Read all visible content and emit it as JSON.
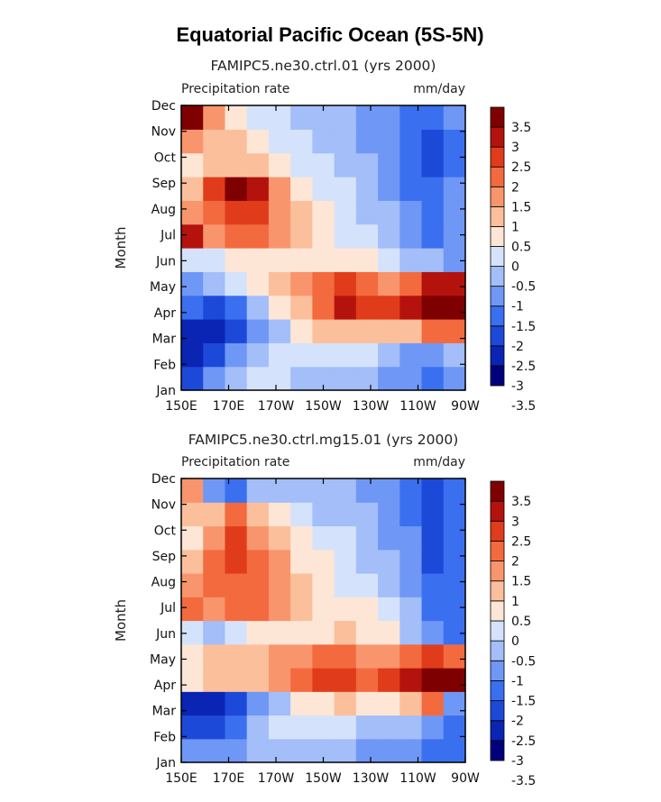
{
  "figure": {
    "title": "Equatorial Pacific Ocean (5S-5N)"
  },
  "colors": {
    "levels": [
      "#00007f",
      "#0a24b4",
      "#1d49d9",
      "#3a6ff0",
      "#6f97f5",
      "#a3bef8",
      "#d4e3fb",
      "#fde6d6",
      "#fcbf9c",
      "#f9956c",
      "#f36a3f",
      "#e03c1b",
      "#b4130d",
      "#7f0000"
    ],
    "frame": "#000000"
  },
  "chart_data": [
    {
      "type": "heatmap",
      "title": "FAMIPC5.ne30.ctrl.01 (yrs 2000)",
      "left_label": "Precipitation rate",
      "right_label": "mm/day",
      "ylabel": "Month",
      "xlabel": "",
      "x": [
        "150E",
        "170E",
        "170W",
        "150W",
        "130W",
        "110W",
        "90W"
      ],
      "y": [
        "Jan",
        "Feb",
        "Mar",
        "Apr",
        "May",
        "Jun",
        "Jul",
        "Aug",
        "Sep",
        "Oct",
        "Nov",
        "Dec"
      ],
      "colorbar": {
        "labels": [
          "3.5",
          "3",
          "2.5",
          "2",
          "1.5",
          "1",
          "0.5",
          "0",
          "-0.5",
          "-1",
          "-1.5",
          "-2",
          "-2.5",
          "-3",
          "-3.5"
        ],
        "range": [
          -4,
          4
        ]
      },
      "values": [
        [
          -2.2,
          -1.5,
          -0.8,
          -0.4,
          -0.5,
          -0.6,
          -0.8,
          -0.9,
          -1.0,
          -1.2,
          -1.5,
          -1.6,
          -1.4
        ],
        [
          -2.6,
          -2.3,
          -1.5,
          -0.8,
          -0.4,
          -0.2,
          -0.1,
          -0.3,
          -0.5,
          -0.8,
          -1.1,
          -1.3,
          -1.0
        ],
        [
          -2.8,
          -2.7,
          -2.2,
          -1.4,
          -0.6,
          0.2,
          0.6,
          0.8,
          0.6,
          0.5,
          0.9,
          1.5,
          1.8
        ],
        [
          -2.0,
          -2.2,
          -1.8,
          -0.8,
          0.0,
          0.9,
          1.6,
          2.5,
          2.0,
          2.2,
          2.8,
          3.6,
          4.0
        ],
        [
          -1.2,
          -0.8,
          -0.3,
          0.2,
          0.6,
          1.2,
          1.8,
          2.0,
          1.8,
          1.4,
          1.8,
          2.5,
          2.8
        ],
        [
          -0.4,
          -0.2,
          0.0,
          0.2,
          0.4,
          0.3,
          0.2,
          0.1,
          0.0,
          -0.3,
          -0.6,
          -1.0,
          -1.2
        ],
        [
          2.8,
          1.2,
          1.6,
          1.8,
          1.2,
          0.6,
          0.2,
          -0.1,
          -0.3,
          -0.6,
          -1.1,
          -1.6,
          -1.4
        ],
        [
          1.2,
          1.6,
          2.4,
          2.0,
          1.4,
          0.5,
          0.0,
          -0.3,
          -0.6,
          -1.0,
          -1.5,
          -1.9,
          -1.5
        ],
        [
          0.8,
          2.0,
          3.4,
          2.8,
          1.2,
          0.4,
          -0.1,
          -0.4,
          -0.7,
          -1.1,
          -1.6,
          -2.0,
          -1.5
        ],
        [
          0.4,
          0.6,
          0.8,
          0.6,
          0.2,
          -0.2,
          -0.4,
          -0.7,
          -1.0,
          -1.3,
          -1.8,
          -2.2,
          -1.6
        ],
        [
          1.4,
          0.8,
          0.6,
          0.2,
          -0.2,
          -0.5,
          -0.7,
          -0.9,
          -1.1,
          -1.4,
          -1.9,
          -2.2,
          -1.6
        ],
        [
          3.0,
          1.4,
          0.4,
          -0.2,
          -0.5,
          -0.7,
          -0.8,
          -1.0,
          -1.2,
          -1.4,
          -1.8,
          -2.0,
          -1.5
        ]
      ]
    },
    {
      "type": "heatmap",
      "title": "FAMIPC5.ne30.ctrl.mg15.01 (yrs 2000)",
      "left_label": "Precipitation rate",
      "right_label": "mm/day",
      "ylabel": "Month",
      "xlabel": "",
      "x": [
        "150E",
        "170E",
        "170W",
        "150W",
        "130W",
        "110W",
        "90W"
      ],
      "y": [
        "Jan",
        "Feb",
        "Mar",
        "Apr",
        "May",
        "Jun",
        "Jul",
        "Aug",
        "Sep",
        "Oct",
        "Nov",
        "Dec"
      ],
      "colorbar": {
        "labels": [
          "3.5",
          "3",
          "2.5",
          "2",
          "1.5",
          "1",
          "0.5",
          "0",
          "-0.5",
          "-1",
          "-1.5",
          "-2",
          "-2.5",
          "-3",
          "-3.5"
        ],
        "range": [
          -4,
          4
        ]
      },
      "values": [
        [
          -1.2,
          -1.4,
          -1.2,
          -0.9,
          -0.8,
          -0.8,
          -0.9,
          -1.0,
          -1.1,
          -1.3,
          -1.5,
          -1.6,
          -1.8
        ],
        [
          -2.4,
          -2.2,
          -1.8,
          -1.0,
          -0.4,
          -0.3,
          -0.3,
          -0.4,
          -0.6,
          -0.8,
          -1.0,
          -1.2,
          -2.0
        ],
        [
          -3.0,
          -2.6,
          -2.3,
          -1.5,
          -0.6,
          0.0,
          0.3,
          0.5,
          0.3,
          0.4,
          0.8,
          1.5,
          -1.2
        ],
        [
          0.2,
          0.8,
          0.6,
          0.8,
          1.0,
          1.6,
          2.0,
          2.2,
          1.9,
          2.0,
          2.6,
          3.6,
          3.4
        ],
        [
          0.4,
          0.8,
          0.6,
          0.6,
          1.0,
          1.4,
          1.6,
          1.6,
          1.4,
          1.2,
          1.5,
          2.2,
          1.6
        ],
        [
          -0.4,
          -0.6,
          -0.2,
          0.0,
          0.2,
          0.3,
          0.4,
          0.5,
          0.3,
          0.0,
          -0.6,
          -1.2,
          -1.6
        ],
        [
          1.6,
          1.4,
          1.6,
          1.8,
          1.0,
          0.5,
          0.2,
          0.2,
          0.1,
          -0.4,
          -1.0,
          -1.8,
          -1.6
        ],
        [
          1.0,
          1.8,
          1.9,
          1.6,
          1.2,
          0.5,
          0.1,
          -0.1,
          -0.4,
          -0.8,
          -1.3,
          -2.0,
          -1.6
        ],
        [
          0.6,
          1.8,
          2.0,
          1.5,
          1.0,
          0.3,
          0.0,
          -0.3,
          -0.6,
          -0.9,
          -1.4,
          -2.1,
          -1.6
        ],
        [
          0.4,
          1.4,
          2.0,
          1.2,
          0.6,
          0.1,
          -0.2,
          -0.5,
          -0.8,
          -1.1,
          -1.5,
          -2.2,
          -1.6
        ],
        [
          0.8,
          0.6,
          1.6,
          0.8,
          0.2,
          -0.3,
          -0.6,
          -0.8,
          -1.0,
          -1.3,
          -1.8,
          -2.3,
          -1.6
        ],
        [
          1.0,
          -1.2,
          -1.6,
          -1.0,
          -0.8,
          -1.0,
          -0.9,
          -1.0,
          -1.2,
          -1.4,
          -1.8,
          -2.2,
          -1.6
        ]
      ]
    }
  ]
}
